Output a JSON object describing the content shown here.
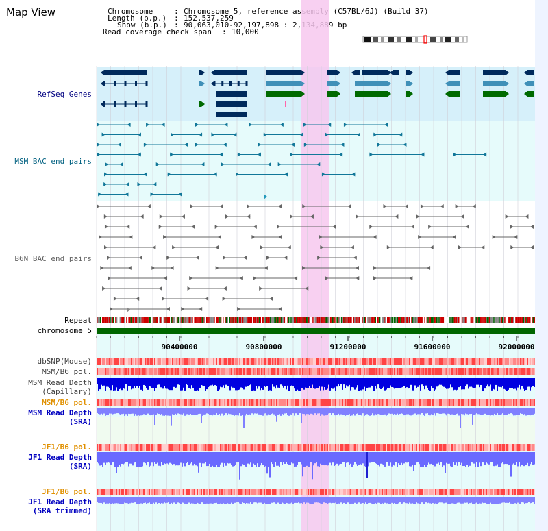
{
  "header": {
    "title": "Map View",
    "chromosome_label": "Chromosome",
    "chromosome_value": "Chromosome 5, reference assembly (C57BL/6J) (Build 37)",
    "length_label": "Length (b.p.)",
    "length_value": "152,537,259",
    "show_label": "Show (b.p.)",
    "show_value": "90,063,010-92,197,898 : 2,134,889 bp",
    "coverage_label": "Read coverage check span",
    "coverage_value": "10,000"
  },
  "tracks": {
    "refseq": {
      "label": "RefSeq Genes",
      "color": "#000080"
    },
    "msm_bac": {
      "label": "MSM BAC end pairs",
      "color": "#006080"
    },
    "b6n_bac": {
      "label": "B6N BAC end pairs",
      "color": "#606060"
    },
    "repeat": {
      "label": "Repeat",
      "color": "#000000"
    },
    "chromosome": {
      "label": "chromosome 5",
      "color": "#000000"
    },
    "dbsnp": {
      "label": "dbSNP(Mouse)",
      "color": "#404040"
    },
    "msm_b6_pol_1": {
      "label": "MSM/B6 pol.",
      "color": "#404040"
    },
    "msm_read_depth_cap": {
      "label": "MSM Read Depth\n(Capillary)",
      "color": "#404040"
    },
    "msm_b6_pol_2": {
      "label": "MSM/B6 pol.",
      "color": "#e09000"
    },
    "msm_read_depth_sra": {
      "label": "MSM Read Depth\n(SRA)",
      "color": "#0000c0"
    },
    "jf1_b6_pol_1": {
      "label": "JF1/B6 pol.",
      "color": "#e09000"
    },
    "jf1_read_depth_sra": {
      "label": "JF1 Read Depth\n(SRA)",
      "color": "#0000c0"
    },
    "jf1_b6_pol_2": {
      "label": "JF1/B6 pol.",
      "color": "#e09000"
    },
    "jf1_read_depth_trim": {
      "label": "JF1 Read Depth\n(SRA trimmed)",
      "color": "#0000c0"
    }
  },
  "axis": {
    "ticks": [
      "90400000",
      "90800000",
      "91200000",
      "91600000",
      "92000000"
    ]
  },
  "colors": {
    "refseq_bg": "#d6f0fa",
    "bac_bg": "#e6fbfb",
    "highlight": "#f7c8ee",
    "gene_dark": "#002a5c",
    "gene_mid": "#4090b8",
    "gene_green": "#006a00",
    "chrom_bar": "#006600",
    "depth_blue": "#0000e0",
    "sra_blue": "#8080ff"
  }
}
